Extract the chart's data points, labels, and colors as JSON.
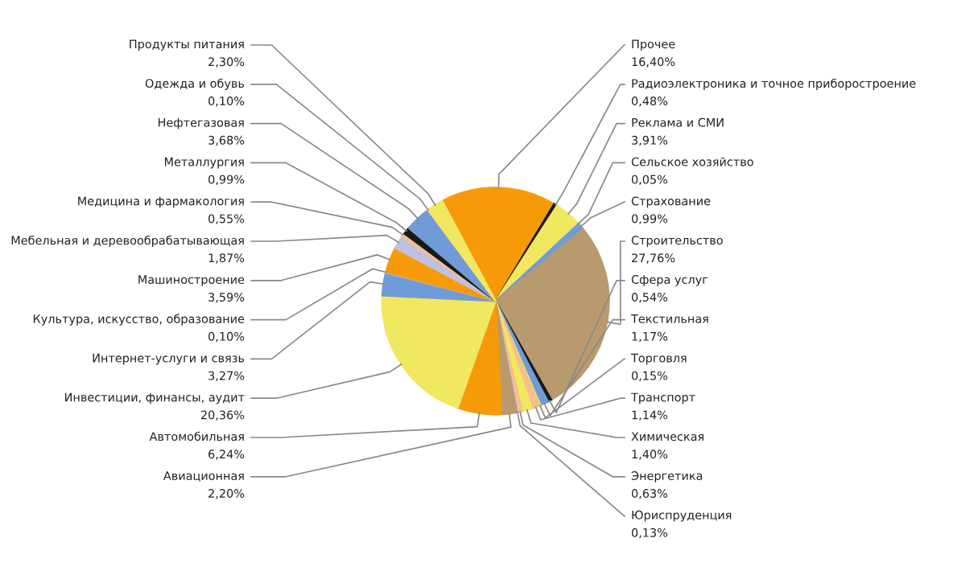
{
  "chart_data": {
    "type": "pie",
    "categories": [
      "Прочее",
      "Радиоэлектроника и точное приборостроение",
      "Реклама и СМИ",
      "Сельское хозяйство",
      "Страхование",
      "Строительство",
      "Сфера услуг",
      "Текстильная",
      "Торговля",
      "Транспорт",
      "Химическая",
      "Энергетика",
      "Юриспруденция",
      "Авиационная",
      "Автомобильная",
      "Инвестиции, финансы, аудит",
      "Интернет-услуги и связь",
      "Культура, искусство, образование",
      "Машиностроение",
      "Мебельная и деревообрабатывающая",
      "Медицина и фармакология",
      "Металлургия",
      "Нефтегазовая",
      "Одежда и обувь",
      "Продукты питания"
    ],
    "values": [
      16.4,
      0.48,
      3.91,
      0.05,
      0.99,
      27.76,
      0.54,
      1.17,
      0.15,
      1.14,
      1.4,
      0.63,
      0.13,
      2.2,
      6.24,
      20.36,
      3.27,
      0.1,
      3.59,
      1.87,
      0.55,
      0.99,
      3.68,
      0.1,
      2.3
    ],
    "value_labels": [
      "16,40%",
      "0,48%",
      "3,91%",
      "0,05%",
      "0,99%",
      "27,76%",
      "0,54%",
      "1,17%",
      "0,15%",
      "1,14%",
      "1,40%",
      "0,63%",
      "0,13%",
      "2,20%",
      "6,24%",
      "20,36%",
      "3,27%",
      "0,10%",
      "3,59%",
      "1,87%",
      "0,55%",
      "0,99%",
      "3,68%",
      "0,10%",
      "2,30%"
    ],
    "colors": [
      "#f79a0a",
      "#1a1a1a",
      "#f0e860",
      "#f5c08a",
      "#6f9bd8",
      "#b89a6e",
      "#1a1a1a",
      "#6f9bd8",
      "#f0e860",
      "#f5c08a",
      "#f0e860",
      "#f5c08a",
      "#c0c0e0",
      "#b89a6e",
      "#f79a0a",
      "#f0e860",
      "#6f9bd8",
      "#c0c0e0",
      "#f79a0a",
      "#c0c0e0",
      "#f5c08a",
      "#1a1a1a",
      "#6f9bd8",
      "#f5c08a",
      "#f0e860"
    ],
    "legend": false
  }
}
